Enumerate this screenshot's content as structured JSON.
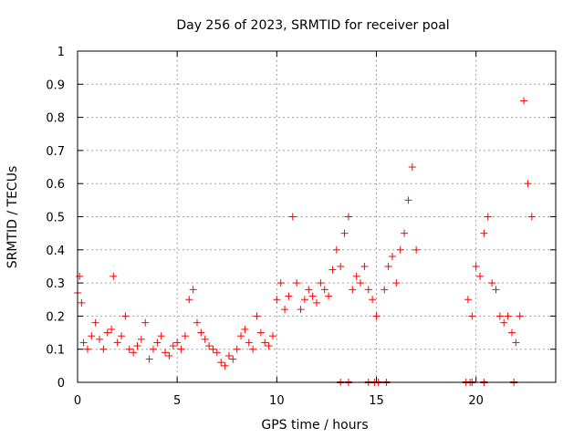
{
  "chart_data": {
    "type": "scatter",
    "title": "Day 256 of 2023, SRMTID for receiver poal",
    "xlabel": "GPS time / hours",
    "ylabel": "SRMTID / TECUs",
    "xlim": [
      0,
      24
    ],
    "ylim": [
      0,
      1
    ],
    "grid": true,
    "marker": "+",
    "marker_color": "#ff0000",
    "x_ticks": [
      0,
      5,
      10,
      15,
      20
    ],
    "x_tick_labels": [
      "0",
      "5",
      "10",
      "15",
      "20"
    ],
    "y_ticks": [
      0,
      0.1,
      0.2,
      0.3,
      0.4,
      0.5,
      0.6,
      0.7,
      0.8,
      0.9,
      1
    ],
    "y_tick_labels": [
      "0",
      "0.1",
      "0.2",
      "0.3",
      "0.4",
      "0.5",
      "0.6",
      "0.7",
      "0.8",
      "0.9",
      "1"
    ],
    "series": [
      {
        "name": "SRMTID",
        "x": [
          0.0,
          0.1,
          0.2,
          0.3,
          0.5,
          0.7,
          0.9,
          1.1,
          1.3,
          1.5,
          1.7,
          1.8,
          2.0,
          2.2,
          2.4,
          2.6,
          2.8,
          3.0,
          3.2,
          3.4,
          3.6,
          3.8,
          4.0,
          4.2,
          4.4,
          4.6,
          4.8,
          5.0,
          5.2,
          5.4,
          5.6,
          5.8,
          6.0,
          6.2,
          6.4,
          6.6,
          6.8,
          7.0,
          7.2,
          7.4,
          7.6,
          7.8,
          8.0,
          8.2,
          8.4,
          8.6,
          8.8,
          9.0,
          9.2,
          9.4,
          9.6,
          9.8,
          10.0,
          10.2,
          10.4,
          10.6,
          10.8,
          11.0,
          11.2,
          11.4,
          11.6,
          11.8,
          12.0,
          12.2,
          12.4,
          12.6,
          12.8,
          13.0,
          13.2,
          13.4,
          13.6,
          13.8,
          14.0,
          14.2,
          14.4,
          14.6,
          14.8,
          15.0,
          15.4,
          15.6,
          15.8,
          16.0,
          16.2,
          16.4,
          16.6,
          16.8,
          17.0,
          19.6,
          19.8,
          20.0,
          20.2,
          20.4,
          20.6,
          20.8,
          21.0,
          21.2,
          21.4,
          21.6,
          21.8,
          22.0,
          22.2,
          22.4,
          22.6,
          22.8
        ],
        "y": [
          0.27,
          0.32,
          0.24,
          0.12,
          0.1,
          0.14,
          0.18,
          0.13,
          0.1,
          0.15,
          0.16,
          0.32,
          0.12,
          0.14,
          0.2,
          0.1,
          0.09,
          0.11,
          0.13,
          0.18,
          0.07,
          0.1,
          0.12,
          0.14,
          0.09,
          0.08,
          0.11,
          0.12,
          0.1,
          0.14,
          0.25,
          0.28,
          0.18,
          0.15,
          0.13,
          0.11,
          0.1,
          0.09,
          0.06,
          0.05,
          0.08,
          0.07,
          0.1,
          0.14,
          0.16,
          0.12,
          0.1,
          0.2,
          0.15,
          0.12,
          0.11,
          0.14,
          0.25,
          0.3,
          0.22,
          0.26,
          0.5,
          0.3,
          0.22,
          0.25,
          0.28,
          0.26,
          0.24,
          0.3,
          0.28,
          0.26,
          0.34,
          0.4,
          0.35,
          0.45,
          0.5,
          0.28,
          0.32,
          0.3,
          0.35,
          0.28,
          0.25,
          0.2,
          0.28,
          0.35,
          0.38,
          0.3,
          0.4,
          0.45,
          0.55,
          0.65,
          0.4,
          0.25,
          0.2,
          0.35,
          0.32,
          0.45,
          0.5,
          0.3,
          0.28,
          0.2,
          0.18,
          0.2,
          0.15,
          0.12,
          0.2,
          0.85,
          0.6,
          0.5
        ]
      }
    ],
    "baseline_markers_x": [
      13.2,
      13.6,
      14.6,
      14.9,
      15.1,
      15.5,
      19.5,
      19.7,
      19.8,
      20.4,
      21.9
    ]
  }
}
